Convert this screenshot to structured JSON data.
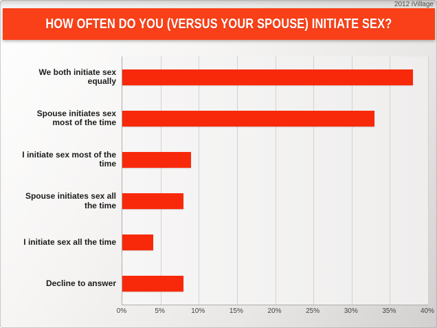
{
  "credit": "2012 iVillage",
  "header": {
    "title": "HOW OFTEN DO YOU (VERSUS YOUR SPOUSE) INITIATE SEX?"
  },
  "colors": {
    "header_bg": "#f94018",
    "bar": "#f8290b",
    "grid": "#d3d1d0",
    "axis": "#aeacab",
    "category_label": "#1c1c1c",
    "tick_label": "#3f3f3f",
    "credit_text": "#4c4c4c"
  },
  "chart_data": {
    "type": "bar",
    "orientation": "horizontal",
    "title": "HOW OFTEN DO YOU (VERSUS YOUR SPOUSE) INITIATE SEX?",
    "categories": [
      "We both initiate sex equally",
      "Spouse initiates sex most of the time",
      "I initiate sex most of the time",
      "Spouse initiates sex all the time",
      "I initiate sex all the time",
      "Decline to answer"
    ],
    "values": [
      38,
      33,
      9,
      8,
      4,
      8
    ],
    "unit": "%",
    "xlabel": "",
    "ylabel": "",
    "xlim": [
      0,
      40
    ],
    "xticks": [
      "0%",
      "5%",
      "10%",
      "15%",
      "20%",
      "25%",
      "30%",
      "35%",
      "40%"
    ],
    "grid": true,
    "legend": false
  }
}
